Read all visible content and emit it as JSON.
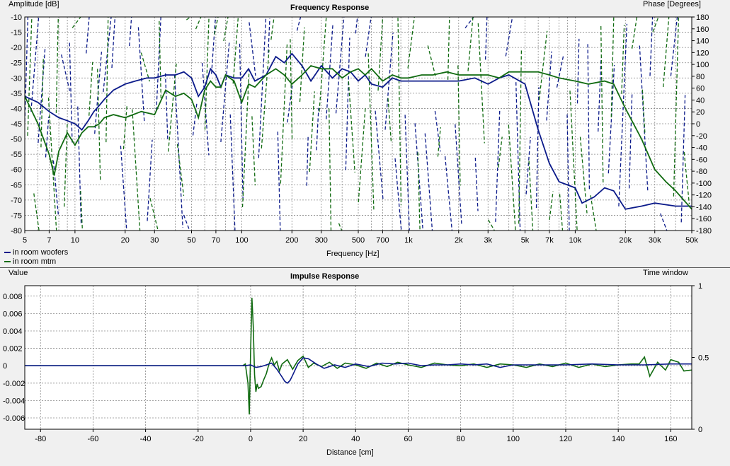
{
  "colors": {
    "woofers": "#0b1a8a",
    "mtm": "#116b11",
    "grid": "#8a8a8a",
    "background": "#f0f0f0",
    "plot_bg": "#ffffff"
  },
  "chart_data": [
    {
      "type": "line",
      "title": "Frequency Response",
      "ylabel": "Amplitude [dB]",
      "y2label": "Phase [Degrees]",
      "xlabel": "Frequency [Hz]",
      "xscale": "log",
      "xlim": [
        5,
        50000
      ],
      "ylim": [
        -80,
        -10
      ],
      "y2lim": [
        -180,
        180
      ],
      "grid": true,
      "legend_position": "bottom-left",
      "xticks": [
        5,
        7,
        10,
        20,
        30,
        50,
        70,
        100,
        200,
        300,
        500,
        700,
        1000,
        2000,
        3000,
        5000,
        7000,
        10000,
        20000,
        30000,
        50000
      ],
      "xtick_labels": [
        "5",
        "7",
        "10",
        "20",
        "30",
        "50",
        "70",
        "100",
        "200",
        "300",
        "500",
        "700",
        "1k",
        "2k",
        "3k",
        "5k",
        "7k",
        "10k",
        "20k",
        "30k",
        "50k"
      ],
      "yticks": [
        -10,
        -15,
        -20,
        -25,
        -30,
        -35,
        -40,
        -45,
        -50,
        -55,
        -60,
        -65,
        -70,
        -75,
        -80
      ],
      "ytick_labels": [
        "-10",
        "-15",
        "-20",
        "-25",
        "-30",
        "-35",
        "-40",
        "-45",
        "-50",
        "-55",
        "-60",
        "-65",
        "-70",
        "-75",
        "-80"
      ],
      "y2ticks": [
        180,
        160,
        140,
        120,
        100,
        80,
        60,
        40,
        20,
        0,
        -20,
        -40,
        -60,
        -80,
        -100,
        -120,
        -140,
        -160,
        -180
      ],
      "y2tick_labels": [
        "180",
        "160",
        "140",
        "120",
        "100",
        "80",
        "60",
        "40",
        "20",
        "0",
        "-20",
        "-40",
        "-60",
        "-80",
        "-100",
        "-120",
        "-140",
        "-160",
        "-180"
      ],
      "series": [
        {
          "name": "in room woofers",
          "kind": "magnitude",
          "color_key": "woofers",
          "x": [
            5,
            6,
            7,
            8,
            9,
            10,
            11,
            12,
            13,
            14,
            15,
            17,
            20,
            23,
            27,
            30,
            35,
            40,
            45,
            50,
            55,
            60,
            65,
            70,
            75,
            80,
            90,
            100,
            110,
            120,
            140,
            160,
            180,
            200,
            230,
            260,
            300,
            350,
            400,
            450,
            500,
            550,
            600,
            700,
            800,
            900,
            1000,
            1200,
            1400,
            1700,
            2000,
            2500,
            3000,
            3500,
            4000,
            5000,
            6000,
            7000,
            8000,
            10000,
            11000,
            13000,
            15000,
            17000,
            20000,
            25000,
            30000,
            40000,
            50000
          ],
          "y": [
            -36,
            -38,
            -41,
            -43,
            -44,
            -45,
            -47,
            -44,
            -41,
            -39,
            -37,
            -34,
            -32,
            -31,
            -30,
            -30,
            -29,
            -29,
            -28,
            -30,
            -36,
            -33,
            -27,
            -29,
            -33,
            -29,
            -30,
            -30,
            -27,
            -31,
            -29,
            -23,
            -25,
            -22,
            -26,
            -31,
            -26,
            -30,
            -27,
            -28,
            -31,
            -29,
            -32,
            -33,
            -30,
            -31,
            -31,
            -31,
            -31,
            -31,
            -31,
            -30,
            -32,
            -30,
            -29,
            -32,
            -47,
            -58,
            -64,
            -66,
            -71,
            -69,
            -66,
            -67,
            -73,
            -72,
            -71,
            -72,
            -72
          ]
        },
        {
          "name": "in room mtm",
          "kind": "magnitude",
          "color_key": "mtm",
          "x": [
            5,
            6,
            7,
            7.5,
            8,
            9,
            10,
            11,
            12,
            13,
            14,
            15,
            17,
            20,
            25,
            30,
            35,
            40,
            45,
            50,
            55,
            60,
            65,
            70,
            75,
            80,
            90,
            100,
            110,
            120,
            140,
            160,
            180,
            200,
            230,
            260,
            300,
            350,
            400,
            450,
            500,
            550,
            600,
            700,
            800,
            900,
            1000,
            1200,
            1400,
            1700,
            2000,
            2500,
            3000,
            3500,
            4000,
            5000,
            6000,
            7000,
            8000,
            10000,
            12000,
            15000,
            17000,
            20000,
            25000,
            30000,
            35000,
            40000,
            50000
          ],
          "y": [
            -36,
            -45,
            -55,
            -62,
            -54,
            -48,
            -52,
            -48,
            -46,
            -46,
            -45,
            -43,
            -42,
            -43,
            -41,
            -42,
            -34,
            -36,
            -35,
            -37,
            -43,
            -34,
            -31,
            -33,
            -33,
            -29,
            -31,
            -38,
            -32,
            -33,
            -29,
            -27,
            -29,
            -32,
            -29,
            -26,
            -27,
            -27,
            -30,
            -28,
            -27,
            -29,
            -27,
            -31,
            -29,
            -30,
            -30,
            -29,
            -29,
            -28,
            -29,
            -29,
            -29,
            -30,
            -28,
            -28,
            -28,
            -29,
            -30,
            -31,
            -32,
            -31,
            -32,
            -40,
            -50,
            -60,
            -64,
            -67,
            -73
          ]
        }
      ]
    },
    {
      "type": "line",
      "title": "Impulse Response",
      "ylabel": "Value",
      "y2label": "Time window",
      "xlabel": "Distance [cm]",
      "xlim": [
        -86,
        168
      ],
      "ylim": [
        -0.0073,
        0.0092
      ],
      "y2lim": [
        0,
        1
      ],
      "grid": true,
      "xticks": [
        -80,
        -60,
        -40,
        -20,
        0,
        20,
        40,
        60,
        80,
        100,
        120,
        140,
        160
      ],
      "xtick_labels": [
        "-80",
        "-60",
        "-40",
        "-20",
        "0",
        "20",
        "40",
        "60",
        "80",
        "100",
        "120",
        "140",
        "160"
      ],
      "yticks": [
        0.008,
        0.006,
        0.004,
        0.002,
        0,
        -0.002,
        -0.004,
        -0.006
      ],
      "ytick_labels": [
        "0.008",
        "0.006",
        "0.004",
        "0.002",
        "0",
        "-0.002",
        "-0.004",
        "-0.006"
      ],
      "y2ticks": [
        1,
        0.5,
        0
      ],
      "y2tick_labels": [
        "1",
        "0.5",
        "0"
      ],
      "series": [
        {
          "name": "in room woofers",
          "color_key": "woofers",
          "x": [
            -86,
            -2,
            0,
            2,
            4,
            6,
            8,
            10,
            12,
            13,
            14,
            15,
            16,
            18,
            20,
            22,
            25,
            28,
            32,
            36,
            40,
            45,
            50,
            55,
            60,
            65,
            70,
            75,
            80,
            85,
            90,
            95,
            100,
            110,
            120,
            130,
            140,
            150,
            160,
            168
          ],
          "y": [
            0,
            0,
            0.0001,
            -0.0002,
            -0.0001,
            0.0001,
            0.0003,
            -0.0004,
            -0.0013,
            -0.0018,
            -0.002,
            -0.0017,
            -0.0011,
            0.0002,
            0.0009,
            0.0008,
            0.0002,
            -0.0003,
            0.0001,
            -0.0002,
            0.0002,
            -0.0001,
            0.0003,
            0.0002,
            0.0003,
            0,
            0.0001,
            0.0001,
            0.0002,
            0.0001,
            0.0002,
            -0.0002,
            0.0001,
            0.0001,
            0.0001,
            0.0002,
            0.0001,
            0.0001,
            0.0002,
            0.0002
          ]
        },
        {
          "name": "in room mtm",
          "color_key": "mtm",
          "x": [
            -86,
            -3,
            -2,
            -1,
            -0.5,
            0,
            0.5,
            1,
            1.5,
            2,
            2.5,
            3,
            4,
            5,
            6,
            7,
            8,
            9,
            10,
            11,
            12,
            14,
            16,
            18,
            20,
            22,
            24,
            27,
            30,
            33,
            36,
            40,
            44,
            48,
            52,
            56,
            60,
            65,
            70,
            75,
            80,
            85,
            90,
            95,
            100,
            105,
            110,
            115,
            120,
            125,
            130,
            135,
            140,
            145,
            148,
            150,
            152,
            155,
            158,
            160,
            163,
            165,
            168
          ],
          "y": [
            0,
            0,
            0.0002,
            -0.002,
            -0.0056,
            0.0015,
            0.0078,
            0.0045,
            -0.001,
            -0.003,
            -0.0021,
            -0.0026,
            -0.0024,
            -0.0016,
            -0.0009,
            0.0002,
            0.0009,
            0.0001,
            0.0005,
            -0.0006,
            0.0002,
            0.0007,
            -0.0004,
            0.0006,
            0.0011,
            -0.0002,
            0.0003,
            -0.0001,
            0.0004,
            -0.0003,
            0.0003,
            0.0001,
            -0.0003,
            0.0003,
            -0.0001,
            0.0004,
            0.0001,
            -0.0002,
            0.0003,
            0.0001,
            0,
            0.0002,
            -0.0002,
            0.0002,
            0.0001,
            -0.0002,
            0.0002,
            -0.0001,
            0.0003,
            -0.0002,
            0.0002,
            -0.0001,
            0.0001,
            0.0002,
            0.0002,
            0.001,
            -0.0012,
            0.0004,
            -0.0005,
            0.0007,
            0.0004,
            -0.0006,
            -0.0005
          ]
        }
      ]
    }
  ]
}
